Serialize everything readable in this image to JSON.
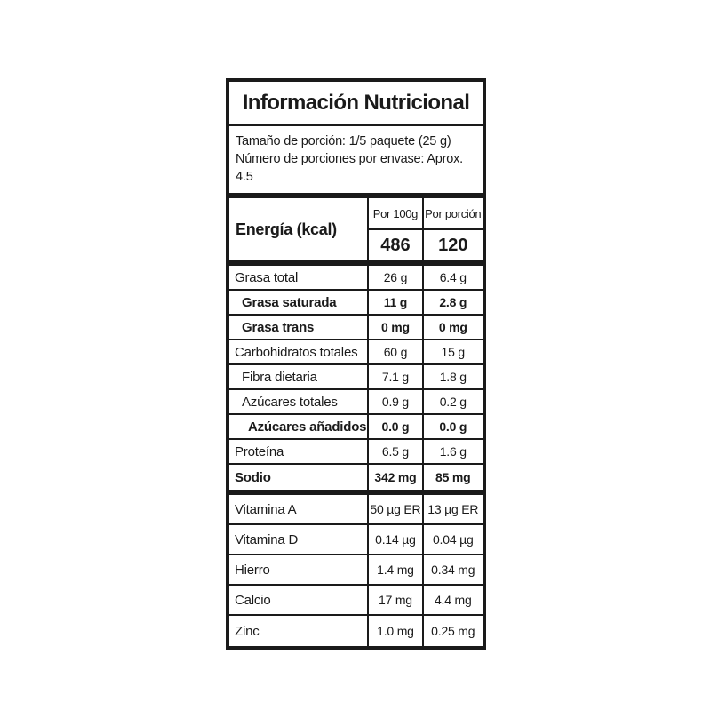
{
  "label": {
    "title": "Información Nutricional",
    "serving_info": {
      "serving_size": "Tamaño de porción: 1/5 paquete (25 g)",
      "servings_per_container": "Número de porciones por envase: Aprox. 4.5"
    },
    "columns": {
      "per_100g": "Por 100g",
      "per_portion": "Por porción"
    },
    "energy": {
      "name": "Energía (kcal)",
      "per_100g": "486",
      "per_portion": "120"
    },
    "nutrients": {
      "rows": [
        {
          "label": "Grasa total",
          "per_100g": "26 g",
          "per_portion": "6.4 g"
        },
        {
          "label": "Grasa saturada",
          "per_100g": "11 g",
          "per_portion": "2.8 g"
        },
        {
          "label": "Grasa trans",
          "per_100g": "0 mg",
          "per_portion": "0 mg"
        },
        {
          "label": "Carbohidratos totales",
          "per_100g": "60 g",
          "per_portion": "15 g"
        },
        {
          "label": "Fibra dietaria",
          "per_100g": "7.1 g",
          "per_portion": "1.8 g"
        },
        {
          "label": "Azúcares totales",
          "per_100g": "0.9 g",
          "per_portion": "0.2 g"
        },
        {
          "label": "Azúcares añadidos",
          "per_100g": "0.0 g",
          "per_portion": "0.0 g"
        },
        {
          "label": "Proteína",
          "per_100g": "6.5 g",
          "per_portion": "1.6 g"
        },
        {
          "label": "Sodio",
          "per_100g": "342 mg",
          "per_portion": "85 mg"
        }
      ]
    },
    "micronutrients": {
      "rows": [
        {
          "label": "Vitamina A",
          "per_100g": "50 µg ER",
          "per_portion": "13 µg ER"
        },
        {
          "label": "Vitamina D",
          "per_100g": "0.14 µg",
          "per_portion": "0.04 µg"
        },
        {
          "label": "Hierro",
          "per_100g": "1.4 mg",
          "per_portion": "0.34 mg"
        },
        {
          "label": "Calcio",
          "per_100g": "17 mg",
          "per_portion": "4.4 mg"
        },
        {
          "label": "Zinc",
          "per_100g": "1.0 mg",
          "per_portion": "0.25 mg"
        }
      ]
    },
    "colors": {
      "background": "#ffffff",
      "text": "#1a1a1a",
      "border": "#1a1a1a"
    }
  }
}
